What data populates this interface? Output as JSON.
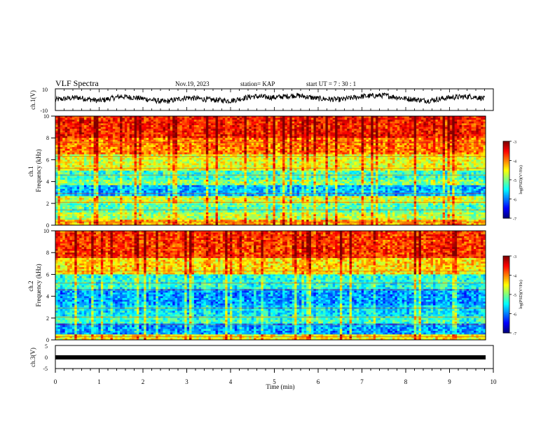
{
  "header": {
    "title": "VLF Spectra",
    "date": "Nov.19, 2023",
    "station": "station= KAP",
    "start": "start  UT =   7 : 30 : 1"
  },
  "chart_data": [
    {
      "type": "line",
      "title": "VLF Spectra",
      "ylabel": "ch.1(V)",
      "yticks": [
        "10",
        "-10"
      ],
      "ylim": [
        -10,
        10
      ],
      "xlim": [
        0,
        10
      ],
      "description_values": {
        "x_minutes": [
          0,
          0.5,
          1,
          1.5,
          2,
          2.5,
          3,
          3.5,
          4,
          4.5,
          5,
          5.5,
          6,
          6.5,
          7,
          7.5,
          8,
          8.5,
          9,
          9.5,
          9.8
        ],
        "y_volts": [
          0,
          2,
          -1,
          3,
          1,
          -2,
          2,
          0,
          -1,
          3,
          2,
          4,
          1,
          0,
          3,
          4,
          1,
          -1,
          2,
          3,
          1
        ]
      }
    },
    {
      "type": "heatmap",
      "ylabel": "ch.1\nFrequency (kHz)",
      "yticks": [
        "0",
        "2",
        "4",
        "6",
        "8",
        "10"
      ],
      "ylim": [
        0,
        10
      ],
      "xlim": [
        0,
        10
      ],
      "colorbar": {
        "label": "log(PSD)(V²/Hz)",
        "ticks": [
          "-3",
          "-4",
          "-5",
          "-6",
          "-7"
        ],
        "range": [
          -7,
          -3
        ]
      },
      "bands_khz": [
        {
          "from": 0,
          "to": 0.5,
          "level": -4.2
        },
        {
          "from": 0.5,
          "to": 1.2,
          "level": -4.8
        },
        {
          "from": 1.2,
          "to": 2.0,
          "level": -5.2
        },
        {
          "from": 2.0,
          "to": 2.6,
          "level": -4.7
        },
        {
          "from": 2.6,
          "to": 3.6,
          "level": -5.8
        },
        {
          "from": 3.6,
          "to": 4.2,
          "level": -5.0
        },
        {
          "from": 4.2,
          "to": 5.0,
          "level": -5.3
        },
        {
          "from": 5.0,
          "to": 6.5,
          "level": -4.6
        },
        {
          "from": 6.5,
          "to": 8.0,
          "level": -4.0
        },
        {
          "from": 8.0,
          "to": 10.0,
          "level": -3.6
        }
      ]
    },
    {
      "type": "heatmap",
      "ylabel": "ch.2\nFrequency (kHz)",
      "yticks": [
        "0",
        "2",
        "4",
        "6",
        "8",
        "10"
      ],
      "ylim": [
        0,
        10
      ],
      "xlim": [
        0,
        10
      ],
      "colorbar": {
        "label": "log(PSD)(V²/Hz)",
        "ticks": [
          "-3",
          "-4",
          "-5",
          "-6",
          "-7"
        ],
        "range": [
          -7,
          -3
        ]
      },
      "bands_khz": [
        {
          "from": 0,
          "to": 0.5,
          "level": -4.5
        },
        {
          "from": 0.5,
          "to": 1.5,
          "level": -5.9
        },
        {
          "from": 1.5,
          "to": 2.2,
          "level": -5.3
        },
        {
          "from": 2.2,
          "to": 3.2,
          "level": -5.6
        },
        {
          "from": 3.2,
          "to": 4.6,
          "level": -5.9
        },
        {
          "from": 4.6,
          "to": 6.0,
          "level": -5.4
        },
        {
          "from": 6.0,
          "to": 7.5,
          "level": -4.4
        },
        {
          "from": 7.5,
          "to": 10.0,
          "level": -3.7
        }
      ]
    },
    {
      "type": "line",
      "ylabel": "ch.3(V)",
      "yticks": [
        "5",
        "0",
        "-5"
      ],
      "ylim": [
        -5,
        5
      ],
      "xlim": [
        0,
        10
      ],
      "xlabel": "Time (min)",
      "xticks": [
        "0",
        "1",
        "2",
        "3",
        "4",
        "5",
        "6",
        "7",
        "8",
        "9",
        "10"
      ],
      "description_values": {
        "x_minutes": [
          0,
          9.8
        ],
        "y_volts_band": [
          -0.8,
          0.8
        ]
      }
    }
  ],
  "colors": {
    "line": "#000000",
    "frame": "#000000"
  }
}
